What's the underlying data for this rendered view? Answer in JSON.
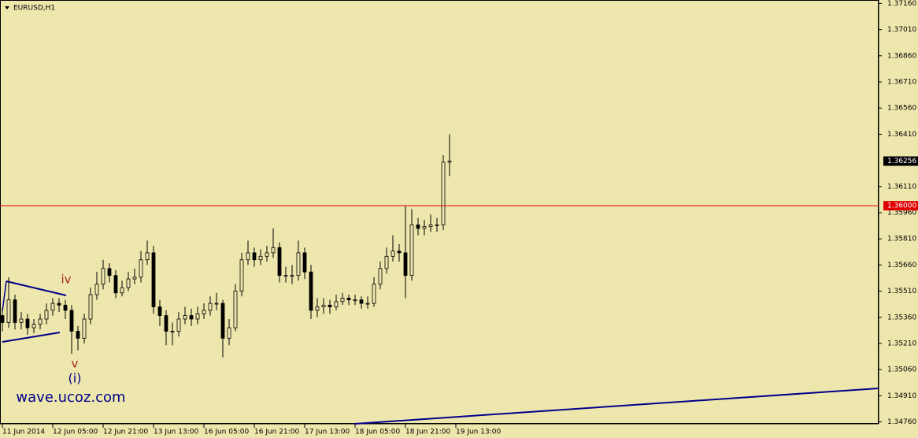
{
  "chart_data": {
    "type": "candlestick",
    "title": "EURUSD,H1",
    "open": [
      1.3537,
      1.3533,
      1.3546,
      1.3533,
      1.3535,
      1.353,
      1.3532,
      1.3535,
      1.354,
      1.3544,
      1.3543,
      1.354,
      1.3528,
      1.3524,
      1.3535,
      1.3549,
      1.3555,
      1.3564,
      1.356,
      1.355,
      1.3553,
      1.3558,
      1.3559,
      1.3569,
      1.3573,
      1.3542,
      1.3537,
      1.3528,
      1.3528,
      1.3535,
      1.3537,
      1.3535,
      1.3538,
      1.354,
      1.3544,
      1.3544,
      1.3524,
      1.353,
      1.3551,
      1.3569,
      1.3573,
      1.3569,
      1.3571,
      1.3573,
      1.3576,
      1.356,
      1.356,
      1.356,
      1.3573,
      1.3562,
      1.354,
      1.3542,
      1.3543,
      1.3542,
      1.3545,
      1.3547,
      1.3546,
      1.3546,
      1.3544,
      1.3544,
      1.3555,
      1.3564,
      1.3571,
      1.3574,
      1.3573,
      1.356,
      1.3589,
      1.3587,
      1.3588,
      1.3589,
      1.3589,
      1.3625
    ],
    "high": [
      1.3541,
      1.3559,
      1.3549,
      1.3539,
      1.3538,
      1.3535,
      1.3538,
      1.3544,
      1.3547,
      1.3547,
      1.3546,
      1.3543,
      1.3531,
      1.3538,
      1.3553,
      1.3562,
      1.3569,
      1.3567,
      1.3563,
      1.3557,
      1.3562,
      1.3564,
      1.3574,
      1.358,
      1.3577,
      1.3546,
      1.354,
      1.3533,
      1.3539,
      1.3542,
      1.3541,
      1.3542,
      1.3544,
      1.3548,
      1.355,
      1.3546,
      1.3535,
      1.3555,
      1.3573,
      1.358,
      1.3576,
      1.3575,
      1.3577,
      1.3587,
      1.3579,
      1.3565,
      1.3566,
      1.358,
      1.3576,
      1.3566,
      1.3547,
      1.3547,
      1.3546,
      1.3549,
      1.355,
      1.3549,
      1.3549,
      1.3548,
      1.3548,
      1.3559,
      1.3568,
      1.3576,
      1.3583,
      1.3578,
      1.36,
      1.3598,
      1.3593,
      1.3592,
      1.3595,
      1.3593,
      1.3629,
      1.3641
    ],
    "low": [
      1.3528,
      1.353,
      1.3529,
      1.3529,
      1.3526,
      1.3527,
      1.3529,
      1.3532,
      1.3537,
      1.3539,
      1.3535,
      1.3515,
      1.3517,
      1.3521,
      1.3532,
      1.3546,
      1.3552,
      1.3556,
      1.3547,
      1.3548,
      1.3551,
      1.3555,
      1.3556,
      1.3566,
      1.3538,
      1.3531,
      1.352,
      1.352,
      1.3525,
      1.3532,
      1.3531,
      1.3532,
      1.3535,
      1.3537,
      1.354,
      1.3513,
      1.352,
      1.3528,
      1.3548,
      1.3566,
      1.3565,
      1.3566,
      1.3568,
      1.357,
      1.3556,
      1.3556,
      1.3555,
      1.3557,
      1.3558,
      1.3535,
      1.3536,
      1.3538,
      1.3538,
      1.354,
      1.3543,
      1.3543,
      1.3543,
      1.3541,
      1.3541,
      1.3542,
      1.3552,
      1.3561,
      1.3568,
      1.3568,
      1.3547,
      1.3557,
      1.3583,
      1.3583,
      1.3585,
      1.3585,
      1.3586,
      1.3617
    ],
    "close": [
      1.3533,
      1.3546,
      1.3533,
      1.3535,
      1.353,
      1.3532,
      1.3535,
      1.354,
      1.3544,
      1.3543,
      1.354,
      1.3528,
      1.3524,
      1.3535,
      1.3549,
      1.3555,
      1.3564,
      1.356,
      1.355,
      1.3553,
      1.3558,
      1.3559,
      1.3569,
      1.3573,
      1.3542,
      1.3537,
      1.3528,
      1.3528,
      1.3535,
      1.3537,
      1.3535,
      1.3538,
      1.354,
      1.3544,
      1.3544,
      1.3524,
      1.353,
      1.3551,
      1.3569,
      1.3573,
      1.3569,
      1.3571,
      1.3573,
      1.3576,
      1.356,
      1.356,
      1.356,
      1.3573,
      1.3562,
      1.354,
      1.3542,
      1.3543,
      1.3542,
      1.3545,
      1.3547,
      1.3546,
      1.3546,
      1.3544,
      1.3544,
      1.3555,
      1.3564,
      1.3571,
      1.3574,
      1.3573,
      1.356,
      1.3589,
      1.3587,
      1.3588,
      1.3589,
      1.3589,
      1.3625,
      1.36256
    ],
    "ylim": [
      1.3474,
      1.3718
    ],
    "yticks": [
      {
        "value": 1.3716,
        "label": "1.37160"
      },
      {
        "value": 1.3701,
        "label": "1.37010"
      },
      {
        "value": 1.3686,
        "label": "1.36860"
      },
      {
        "value": 1.3671,
        "label": "1.36710"
      },
      {
        "value": 1.3656,
        "label": "1.36560"
      },
      {
        "value": 1.3641,
        "label": "1.36410"
      },
      {
        "value": 1.3611,
        "label": "1.36110"
      },
      {
        "value": 1.3596,
        "label": "1.35960"
      },
      {
        "value": 1.3581,
        "label": "1.35810"
      },
      {
        "value": 1.3566,
        "label": "1.35660"
      },
      {
        "value": 1.3551,
        "label": "1.35510"
      },
      {
        "value": 1.3536,
        "label": "1.35360"
      },
      {
        "value": 1.3521,
        "label": "1.35210"
      },
      {
        "value": 1.3506,
        "label": "1.35060"
      },
      {
        "value": 1.3491,
        "label": "1.34910"
      },
      {
        "value": 1.3476,
        "label": "1.34760"
      }
    ],
    "xlim": [
      0,
      139
    ],
    "xticks": [
      {
        "value": 0,
        "label": "11 Jun 2014"
      },
      {
        "value": 8,
        "label": "12 Jun 05:00"
      },
      {
        "value": 16,
        "label": "12 Jun 21:00"
      },
      {
        "value": 24,
        "label": "13 Jun 13:00"
      },
      {
        "value": 32,
        "label": "16 Jun 05:00"
      },
      {
        "value": 40,
        "label": "16 Jun 21:00"
      },
      {
        "value": 48,
        "label": "17 Jun 13:00"
      },
      {
        "value": 56,
        "label": "18 Jun 05:00"
      },
      {
        "value": 64,
        "label": "18 Jun 21:00"
      },
      {
        "value": 72,
        "label": "19 Jun 13:00"
      }
    ],
    "level": {
      "value": 1.36,
      "label": "1.36000",
      "color": "#e00000"
    },
    "annotations": [
      "iv",
      "v",
      "(i)",
      "wave.ucoz.com"
    ]
  }
}
